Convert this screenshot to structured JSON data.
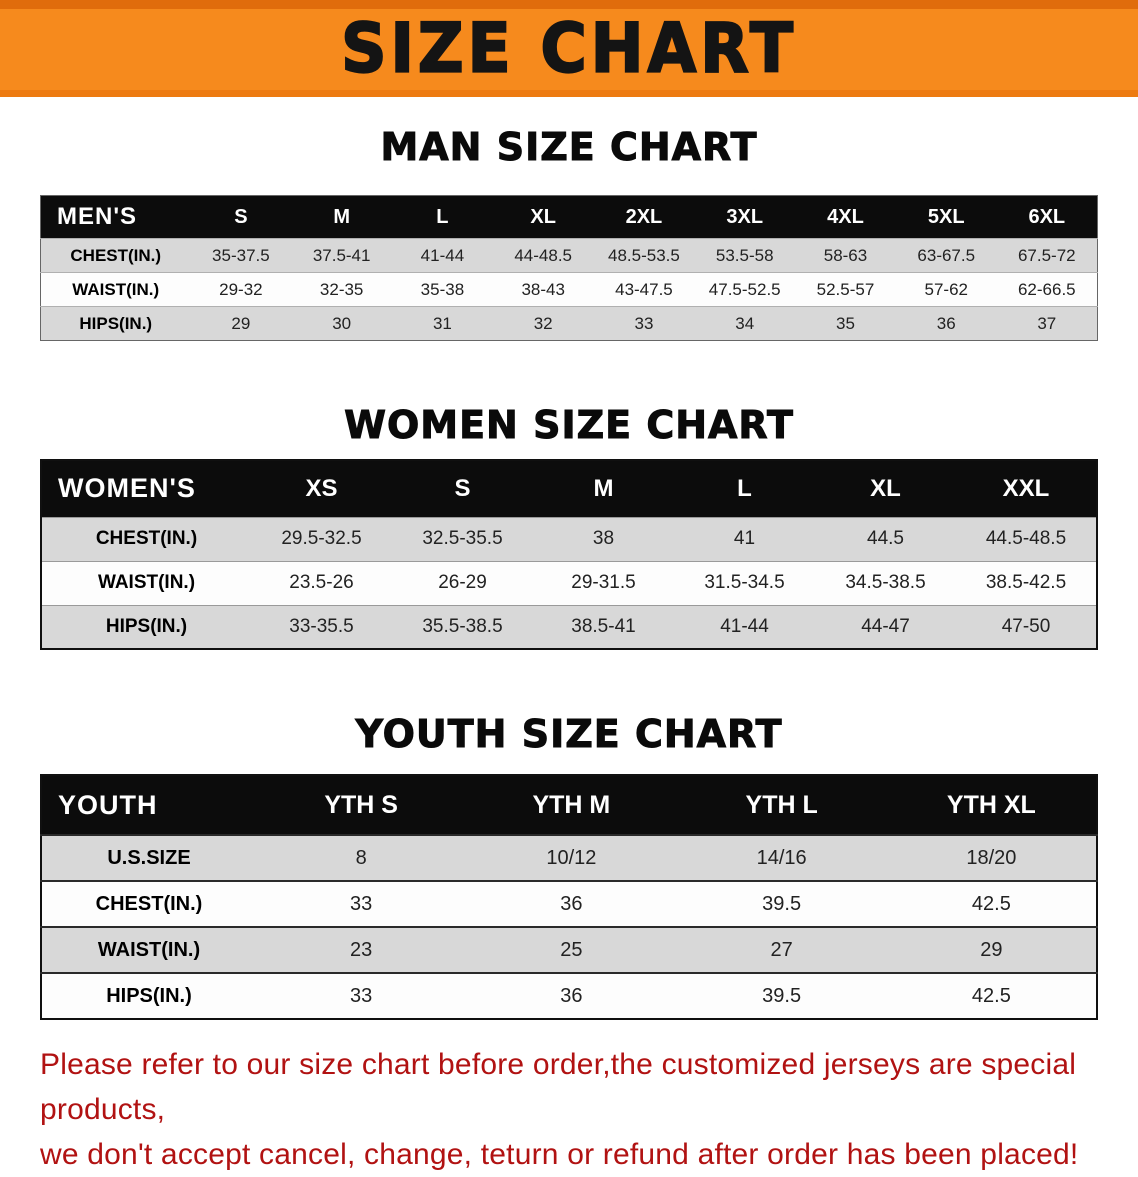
{
  "banner": {
    "title": "SIZE CHART"
  },
  "colors": {
    "banner_orange": "#f68a1d",
    "table_header_black": "#0c0c0c",
    "row_gray": "#d8d8d8",
    "disclaimer_red": "#b11212"
  },
  "sections": [
    {
      "id": "men",
      "heading": "MAN SIZE CHART",
      "corner_label": "MEN'S",
      "columns": [
        "S",
        "M",
        "L",
        "XL",
        "2XL",
        "3XL",
        "4XL",
        "5XL",
        "6XL"
      ],
      "rows": [
        {
          "label": "CHEST(IN.)",
          "values": [
            "35-37.5",
            "37.5-41",
            "41-44",
            "44-48.5",
            "48.5-53.5",
            "53.5-58",
            "58-63",
            "63-67.5",
            "67.5-72"
          ]
        },
        {
          "label": "WAIST(IN.)",
          "values": [
            "29-32",
            "32-35",
            "35-38",
            "38-43",
            "43-47.5",
            "47.5-52.5",
            "52.5-57",
            "57-62",
            "62-66.5"
          ]
        },
        {
          "label": "HIPS(IN.)",
          "values": [
            "29",
            "30",
            "31",
            "32",
            "33",
            "34",
            "35",
            "36",
            "37"
          ]
        }
      ]
    },
    {
      "id": "women",
      "heading": "WOMEN SIZE CHART",
      "corner_label": "WOMEN'S",
      "columns": [
        "XS",
        "S",
        "M",
        "L",
        "XL",
        "XXL"
      ],
      "rows": [
        {
          "label": "CHEST(IN.)",
          "values": [
            "29.5-32.5",
            "32.5-35.5",
            "38",
            "41",
            "44.5",
            "44.5-48.5"
          ]
        },
        {
          "label": "WAIST(IN.)",
          "values": [
            "23.5-26",
            "26-29",
            "29-31.5",
            "31.5-34.5",
            "34.5-38.5",
            "38.5-42.5"
          ]
        },
        {
          "label": "HIPS(IN.)",
          "values": [
            "33-35.5",
            "35.5-38.5",
            "38.5-41",
            "41-44",
            "44-47",
            "47-50"
          ]
        }
      ]
    },
    {
      "id": "youth",
      "heading": "YOUTH SIZE CHART",
      "corner_label": "YOUTH",
      "columns": [
        "YTH S",
        "YTH M",
        "YTH L",
        "YTH XL"
      ],
      "rows": [
        {
          "label": "U.S.SIZE",
          "values": [
            "8",
            "10/12",
            "14/16",
            "18/20"
          ]
        },
        {
          "label": "CHEST(IN.)",
          "values": [
            "33",
            "36",
            "39.5",
            "42.5"
          ]
        },
        {
          "label": "WAIST(IN.)",
          "values": [
            "23",
            "25",
            "27",
            "29"
          ]
        },
        {
          "label": "HIPS(IN.)",
          "values": [
            "33",
            "36",
            "39.5",
            "42.5"
          ]
        }
      ]
    }
  ],
  "disclaimer": {
    "line1": "Please refer to our size chart before order,the customized jerseys are special products,",
    "line2": "we don't accept cancel, change, teturn or refund after order has been placed!"
  }
}
